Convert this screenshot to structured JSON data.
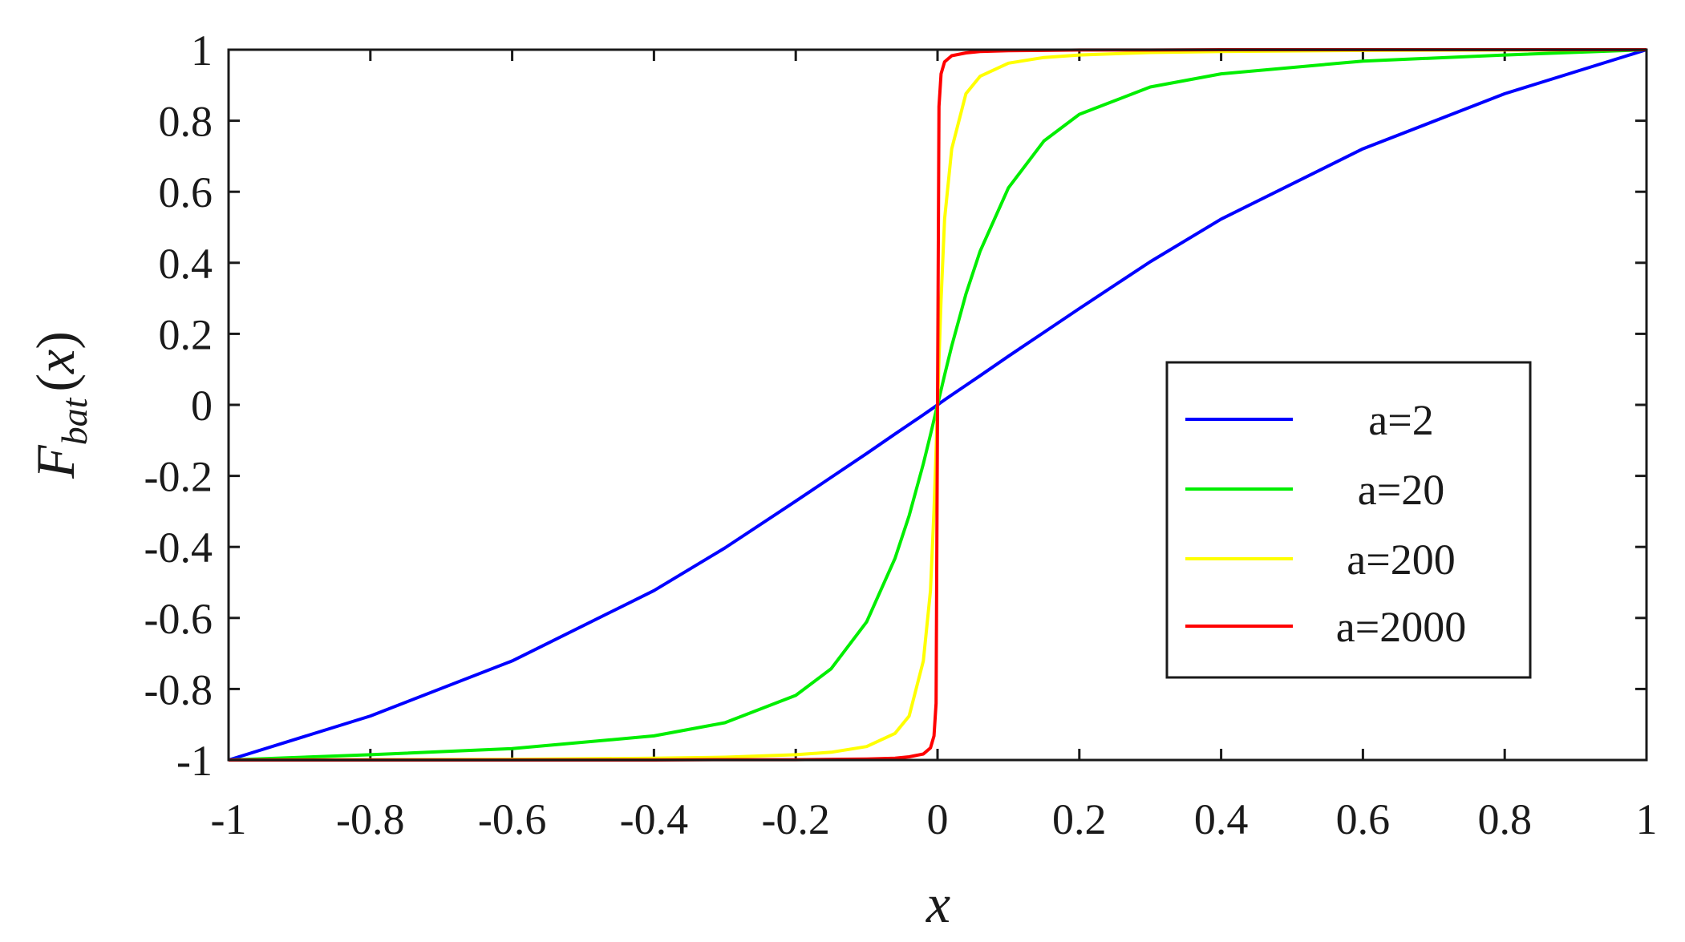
{
  "chart_data": {
    "type": "line",
    "title": "",
    "xlabel": "x",
    "ylabel": {
      "main": "F",
      "subscript": "bat",
      "arg": "x",
      "open": "(",
      "close": ")"
    },
    "xlim": [
      -1,
      1
    ],
    "ylim": [
      -1,
      1
    ],
    "grid": false,
    "legend_position": "right",
    "x_ticks": [
      -1,
      -0.8,
      -0.6,
      -0.4,
      -0.2,
      0,
      0.2,
      0.4,
      0.6,
      0.8,
      1
    ],
    "x_tick_labels": [
      "-1",
      "-0.8",
      "-0.6",
      "-0.4",
      "-0.2",
      "0",
      "0.2",
      "0.4",
      "0.6",
      "0.8",
      "1"
    ],
    "y_ticks": [
      1,
      0.8,
      0.6,
      0.4,
      0.2,
      0,
      -0.2,
      -0.4,
      -0.6,
      -0.8,
      -1
    ],
    "y_tick_labels": [
      "1",
      "0.8",
      "0.6",
      "0.4",
      "0.2",
      "0",
      "-0.2",
      "-0.4",
      "-0.6",
      "-0.8",
      "-1"
    ],
    "x": [
      -1,
      -0.8,
      -0.6,
      -0.4,
      -0.3,
      -0.2,
      -0.15,
      -0.1,
      -0.06,
      -0.04,
      -0.02,
      -0.01,
      -0.005,
      -0.002,
      0,
      0.002,
      0.005,
      0.01,
      0.02,
      0.04,
      0.06,
      0.1,
      0.15,
      0.2,
      0.3,
      0.4,
      0.6,
      0.8,
      1
    ],
    "series": [
      {
        "name": "a=2",
        "color": "#0000ff",
        "values": [
          -1,
          -0.876,
          -0.721,
          -0.523,
          -0.403,
          -0.271,
          -0.204,
          -0.137,
          -0.082,
          -0.055,
          -0.028,
          -0.014,
          -0.007,
          -0.003,
          0,
          0.003,
          0.007,
          0.014,
          0.028,
          0.055,
          0.082,
          0.137,
          0.204,
          0.271,
          0.403,
          0.523,
          0.721,
          0.876,
          1
        ]
      },
      {
        "name": "a=20",
        "color": "#00ee00",
        "values": [
          -1,
          -0.985,
          -0.968,
          -0.932,
          -0.895,
          -0.818,
          -0.743,
          -0.611,
          -0.432,
          -0.312,
          -0.166,
          -0.084,
          -0.042,
          -0.017,
          0,
          0.017,
          0.042,
          0.084,
          0.166,
          0.312,
          0.432,
          0.611,
          0.743,
          0.818,
          0.895,
          0.932,
          0.968,
          0.985,
          1
        ]
      },
      {
        "name": "a=200",
        "color": "#ffff00",
        "values": [
          -1,
          -0.999,
          -0.998,
          -0.995,
          -0.992,
          -0.985,
          -0.978,
          -0.962,
          -0.925,
          -0.876,
          -0.721,
          -0.523,
          -0.296,
          -0.125,
          0,
          0.125,
          0.296,
          0.523,
          0.721,
          0.876,
          0.925,
          0.962,
          0.978,
          0.985,
          0.992,
          0.995,
          0.998,
          0.999,
          1
        ]
      },
      {
        "name": "a=2000",
        "color": "#ff0000",
        "values": [
          -1,
          -1,
          -1,
          -1,
          -0.999,
          -0.999,
          -0.998,
          -0.997,
          -0.995,
          -0.991,
          -0.983,
          -0.966,
          -0.932,
          -0.84,
          0,
          0.84,
          0.932,
          0.966,
          0.983,
          0.991,
          0.995,
          0.997,
          0.998,
          0.999,
          0.999,
          1,
          1,
          1,
          1
        ]
      }
    ]
  }
}
